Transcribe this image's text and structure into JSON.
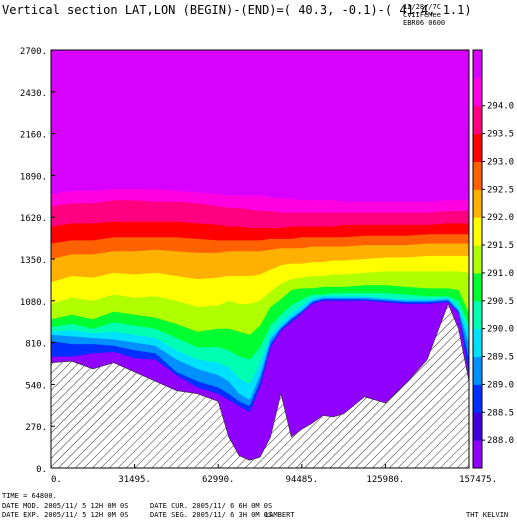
{
  "header": {
    "title": "Vertical section LAT,LON (BEGIN)-(END)=( 40.3, -0.1)-( 41.4,  1.1)",
    "corner_line1": "12/28//7C",
    "corner_line2": "CvIIFeMee",
    "corner_line3": "EBR06 0600"
  },
  "footer": {
    "time_line": "TIME =   64800.",
    "date_mod": "DATE MOD. 2005/11/ 5  12H 0M 0S",
    "date_cur": "DATE CUR. 2005/11/ 6   6H 0M 0S",
    "date_exp": "DATE EXP.  2005/11/ 5  12H 0M 0S",
    "date_seg": "DATE SEG. 2005/11/ 6   3H 0M 0S",
    "projection": "LAMBERT",
    "field": "THT KELVIN"
  },
  "colors": {
    "band_287.5": "#9000ff",
    "band_288.0": "#4000e0",
    "band_288.5": "#0030ff",
    "band_289.0": "#0090ff",
    "band_289.5": "#00e0ff",
    "band_290.0": "#00ffb0",
    "band_290.5": "#00ff30",
    "band_291.0": "#b0ff00",
    "band_291.5": "#ffff00",
    "band_292.0": "#ffb000",
    "band_292.5": "#ff6000",
    "band_293.0": "#ff0000",
    "band_293.5": "#ff0080",
    "band_294.0": "#ff00e0",
    "band_294.5": "#d800ff",
    "terrain_hatch": "#333333"
  },
  "chart_data": {
    "type": "heatmap",
    "title": "Vertical section LAT,LON (BEGIN)-(END)=( 40.3, -0.1)-( 41.4,  1.1)",
    "field": "THT KELVIN",
    "xlim": [
      0,
      157475
    ],
    "ylim": [
      0,
      2700
    ],
    "x_ticks": [
      0,
      31495,
      62990,
      94485,
      125980,
      157475
    ],
    "x_tick_labels": [
      "0.",
      "31495.",
      "62990.",
      "94485.",
      "125980.",
      "157475."
    ],
    "y_ticks": [
      0,
      270,
      540,
      810,
      1080,
      1350,
      1620,
      1890,
      2160,
      2430,
      2700
    ],
    "y_tick_labels": [
      "0.",
      "270.",
      "540.",
      "810.",
      "1080.",
      "1350.",
      "1620.",
      "1890.",
      "2160.",
      "2430.",
      "2700."
    ],
    "colorbar_ticks": [
      "288.0",
      "288.5",
      "289.0",
      "289.5",
      "290.0",
      "290.5",
      "291.0",
      "291.5",
      "292.0",
      "292.5",
      "293.0",
      "293.5",
      "294.0"
    ],
    "colorbar_levels": [
      287.5,
      288.0,
      288.5,
      289.0,
      289.5,
      290.0,
      290.5,
      291.0,
      291.5,
      292.0,
      292.5,
      293.0,
      293.5,
      294.0,
      294.5
    ],
    "sample_x": [
      0,
      7874,
      15748,
      23621,
      31495,
      39369,
      47243,
      55116,
      62990,
      66927,
      70864,
      74801,
      78738,
      82675,
      86611,
      90548,
      94485,
      98422,
      102359,
      106296,
      110232,
      118106,
      125980,
      133854,
      141727,
      149601,
      153538,
      157475
    ],
    "terrain": [
      680,
      690,
      640,
      680,
      620,
      560,
      500,
      480,
      430,
      200,
      80,
      50,
      70,
      200,
      480,
      200,
      250,
      290,
      340,
      330,
      350,
      460,
      420,
      550,
      700,
      1060,
      900,
      560
    ],
    "isentropes": {
      "288.0": [
        720,
        720,
        740,
        750,
        710,
        700,
        600,
        520,
        480,
        440,
        400,
        360,
        520,
        780,
        890,
        940,
        1000,
        1060,
        1080,
        1080,
        1080,
        1080,
        1070,
        1060,
        1060,
        1070,
        1000,
        600
      ],
      "288.5": [
        820,
        800,
        800,
        790,
        760,
        740,
        620,
        560,
        520,
        480,
        430,
        400,
        560,
        800,
        900,
        960,
        1010,
        1070,
        1090,
        1090,
        1090,
        1090,
        1080,
        1070,
        1070,
        1080,
        1010,
        700
      ],
      "289.0": [
        860,
        850,
        840,
        830,
        810,
        790,
        700,
        640,
        600,
        560,
        480,
        440,
        600,
        830,
        910,
        970,
        1020,
        1080,
        1100,
        1100,
        1100,
        1100,
        1090,
        1080,
        1080,
        1090,
        1020,
        800
      ],
      "289.5": [
        880,
        890,
        870,
        880,
        860,
        840,
        760,
        700,
        680,
        650,
        580,
        540,
        680,
        860,
        940,
        1000,
        1050,
        1100,
        1110,
        1110,
        1110,
        1110,
        1100,
        1090,
        1090,
        1100,
        1040,
        880
      ],
      "290.0": [
        910,
        930,
        900,
        940,
        920,
        900,
        840,
        780,
        780,
        760,
        720,
        700,
        780,
        920,
        990,
        1050,
        1090,
        1120,
        1120,
        1130,
        1130,
        1130,
        1130,
        1120,
        1110,
        1110,
        1080,
        920
      ],
      "290.5": [
        960,
        990,
        960,
        1010,
        990,
        970,
        930,
        880,
        900,
        900,
        880,
        860,
        920,
        1040,
        1090,
        1150,
        1160,
        1160,
        1170,
        1170,
        1170,
        1180,
        1180,
        1170,
        1160,
        1160,
        1150,
        1000
      ],
      "291.0": [
        1060,
        1100,
        1080,
        1120,
        1100,
        1110,
        1080,
        1040,
        1050,
        1080,
        1060,
        1060,
        1080,
        1140,
        1190,
        1220,
        1230,
        1240,
        1240,
        1250,
        1250,
        1260,
        1270,
        1270,
        1270,
        1270,
        1270,
        1260
      ],
      "291.5": [
        1200,
        1240,
        1230,
        1260,
        1250,
        1260,
        1240,
        1220,
        1230,
        1240,
        1240,
        1240,
        1250,
        1280,
        1310,
        1320,
        1320,
        1330,
        1330,
        1340,
        1340,
        1350,
        1360,
        1360,
        1370,
        1370,
        1370,
        1370
      ],
      "292.0": [
        1350,
        1380,
        1380,
        1400,
        1400,
        1410,
        1400,
        1390,
        1390,
        1400,
        1400,
        1400,
        1400,
        1410,
        1420,
        1420,
        1420,
        1430,
        1430,
        1430,
        1430,
        1440,
        1440,
        1440,
        1450,
        1450,
        1450,
        1450
      ],
      "292.5": [
        1450,
        1470,
        1470,
        1490,
        1490,
        1490,
        1490,
        1480,
        1470,
        1470,
        1470,
        1470,
        1470,
        1480,
        1480,
        1480,
        1490,
        1490,
        1490,
        1490,
        1490,
        1500,
        1500,
        1500,
        1510,
        1510,
        1510,
        1510
      ],
      "293.0": [
        1560,
        1580,
        1580,
        1590,
        1590,
        1590,
        1590,
        1580,
        1570,
        1560,
        1560,
        1550,
        1550,
        1550,
        1550,
        1560,
        1560,
        1560,
        1560,
        1560,
        1570,
        1570,
        1570,
        1570,
        1570,
        1580,
        1580,
        1580
      ],
      "293.5": [
        1690,
        1710,
        1710,
        1730,
        1730,
        1720,
        1720,
        1710,
        1690,
        1680,
        1680,
        1670,
        1660,
        1660,
        1650,
        1650,
        1650,
        1650,
        1650,
        1650,
        1650,
        1650,
        1650,
        1650,
        1650,
        1660,
        1660,
        1660
      ],
      "294.0": [
        1770,
        1790,
        1790,
        1800,
        1800,
        1800,
        1790,
        1780,
        1770,
        1760,
        1760,
        1760,
        1760,
        1750,
        1740,
        1740,
        1730,
        1730,
        1730,
        1730,
        1720,
        1720,
        1720,
        1720,
        1720,
        1730,
        1730,
        1730
      ]
    }
  }
}
